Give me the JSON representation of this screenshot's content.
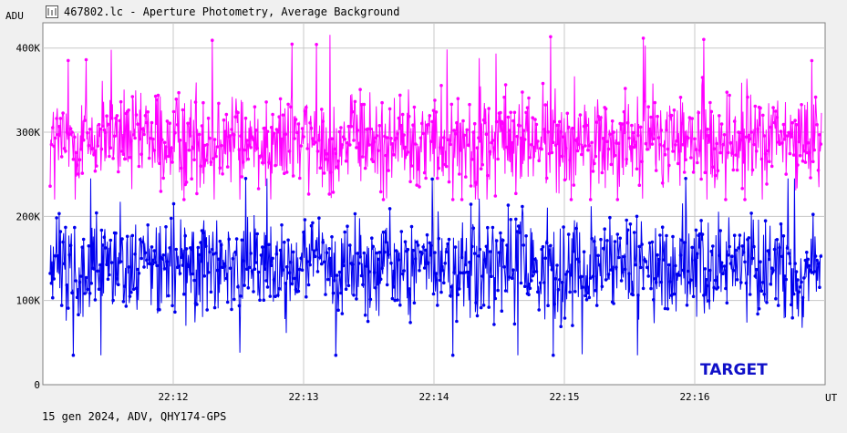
{
  "window": {
    "title": "467802.lc - Aperture Photometry, Average Background",
    "icon": "lightcurve-app-icon"
  },
  "footer_text": "15 gen 2024, ADV, QHY174-GPS",
  "colors": {
    "target": "#0000ee",
    "background": "#ff00ff",
    "grid": "#c8c8c8",
    "plot_bg": "#ffffff",
    "target_label": "#1010c8"
  },
  "chart_data": {
    "type": "line",
    "title": "467802.lc - Aperture Photometry, Average Background",
    "xlabel": "UT",
    "ylabel": "ADU",
    "x_range": [
      "22:11",
      "22:17"
    ],
    "x_ticks": [
      "22:12",
      "22:13",
      "22:14",
      "22:15",
      "22:16"
    ],
    "y_ticks": [
      "0",
      "100K",
      "200K",
      "300K",
      "400K"
    ],
    "ylim": [
      0,
      430000
    ],
    "grid": true,
    "annotation": "TARGET",
    "series": [
      {
        "color": "#ff00ff",
        "approx_mean": 290000,
        "approx_min": 220000,
        "approx_max": 430000,
        "approx_points": 1200
      },
      {
        "name": "TARGET",
        "color": "#0000ee",
        "approx_mean": 140000,
        "approx_min": 35000,
        "approx_max": 245000,
        "approx_points": 1200
      }
    ]
  }
}
